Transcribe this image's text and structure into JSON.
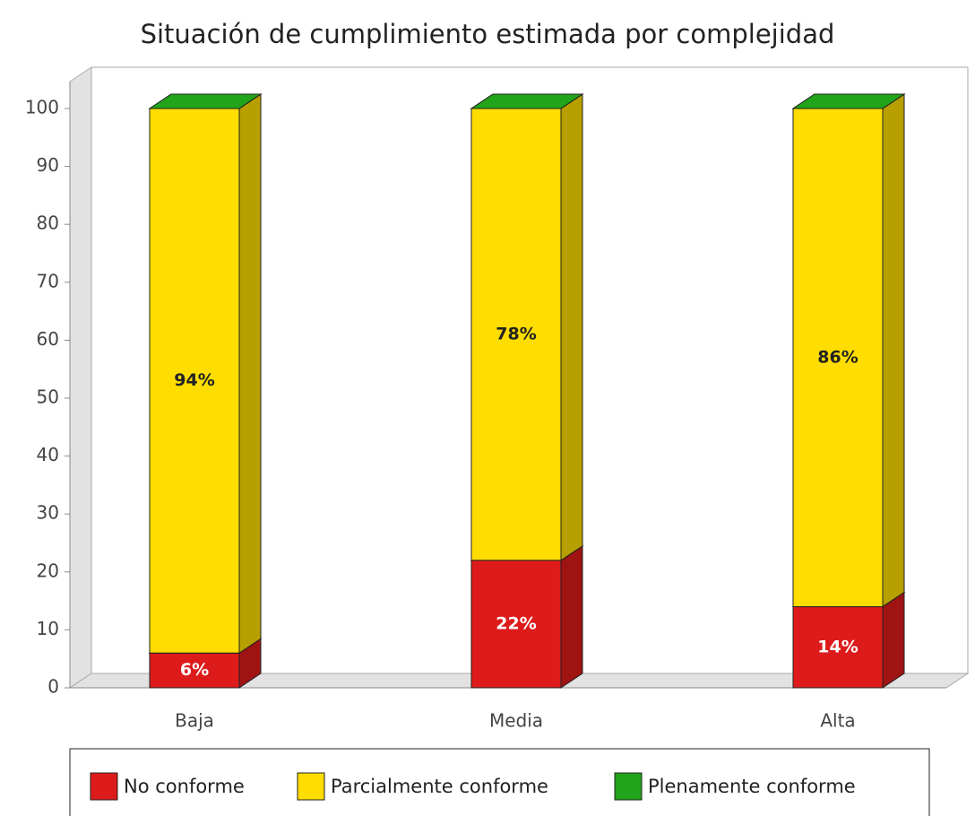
{
  "chart_data": {
    "type": "stacked_bar_3d",
    "title": "Situación de cumplimiento estimada por complejidad",
    "categories": [
      "Baja",
      "Media",
      "Alta"
    ],
    "series": [
      {
        "name": "No conforme",
        "color": "#dd1b1b",
        "values": [
          6,
          22,
          14
        ],
        "value_labels": [
          "6%",
          "22%",
          "14%"
        ],
        "label_color": "#ffffff"
      },
      {
        "name": "Parcialmente conforme",
        "color": "#ffdd00",
        "values": [
          94,
          78,
          86
        ],
        "value_labels": [
          "94%",
          "78%",
          "86%"
        ],
        "label_color": "#222222"
      },
      {
        "name": "Plenamente conforme",
        "color": "#22a41a",
        "values": [
          0,
          0,
          0
        ]
      }
    ],
    "ylim": [
      0,
      100
    ],
    "yticks": [
      0,
      10,
      20,
      30,
      40,
      50,
      60,
      70,
      80,
      90,
      100
    ],
    "legend": "bottom"
  }
}
